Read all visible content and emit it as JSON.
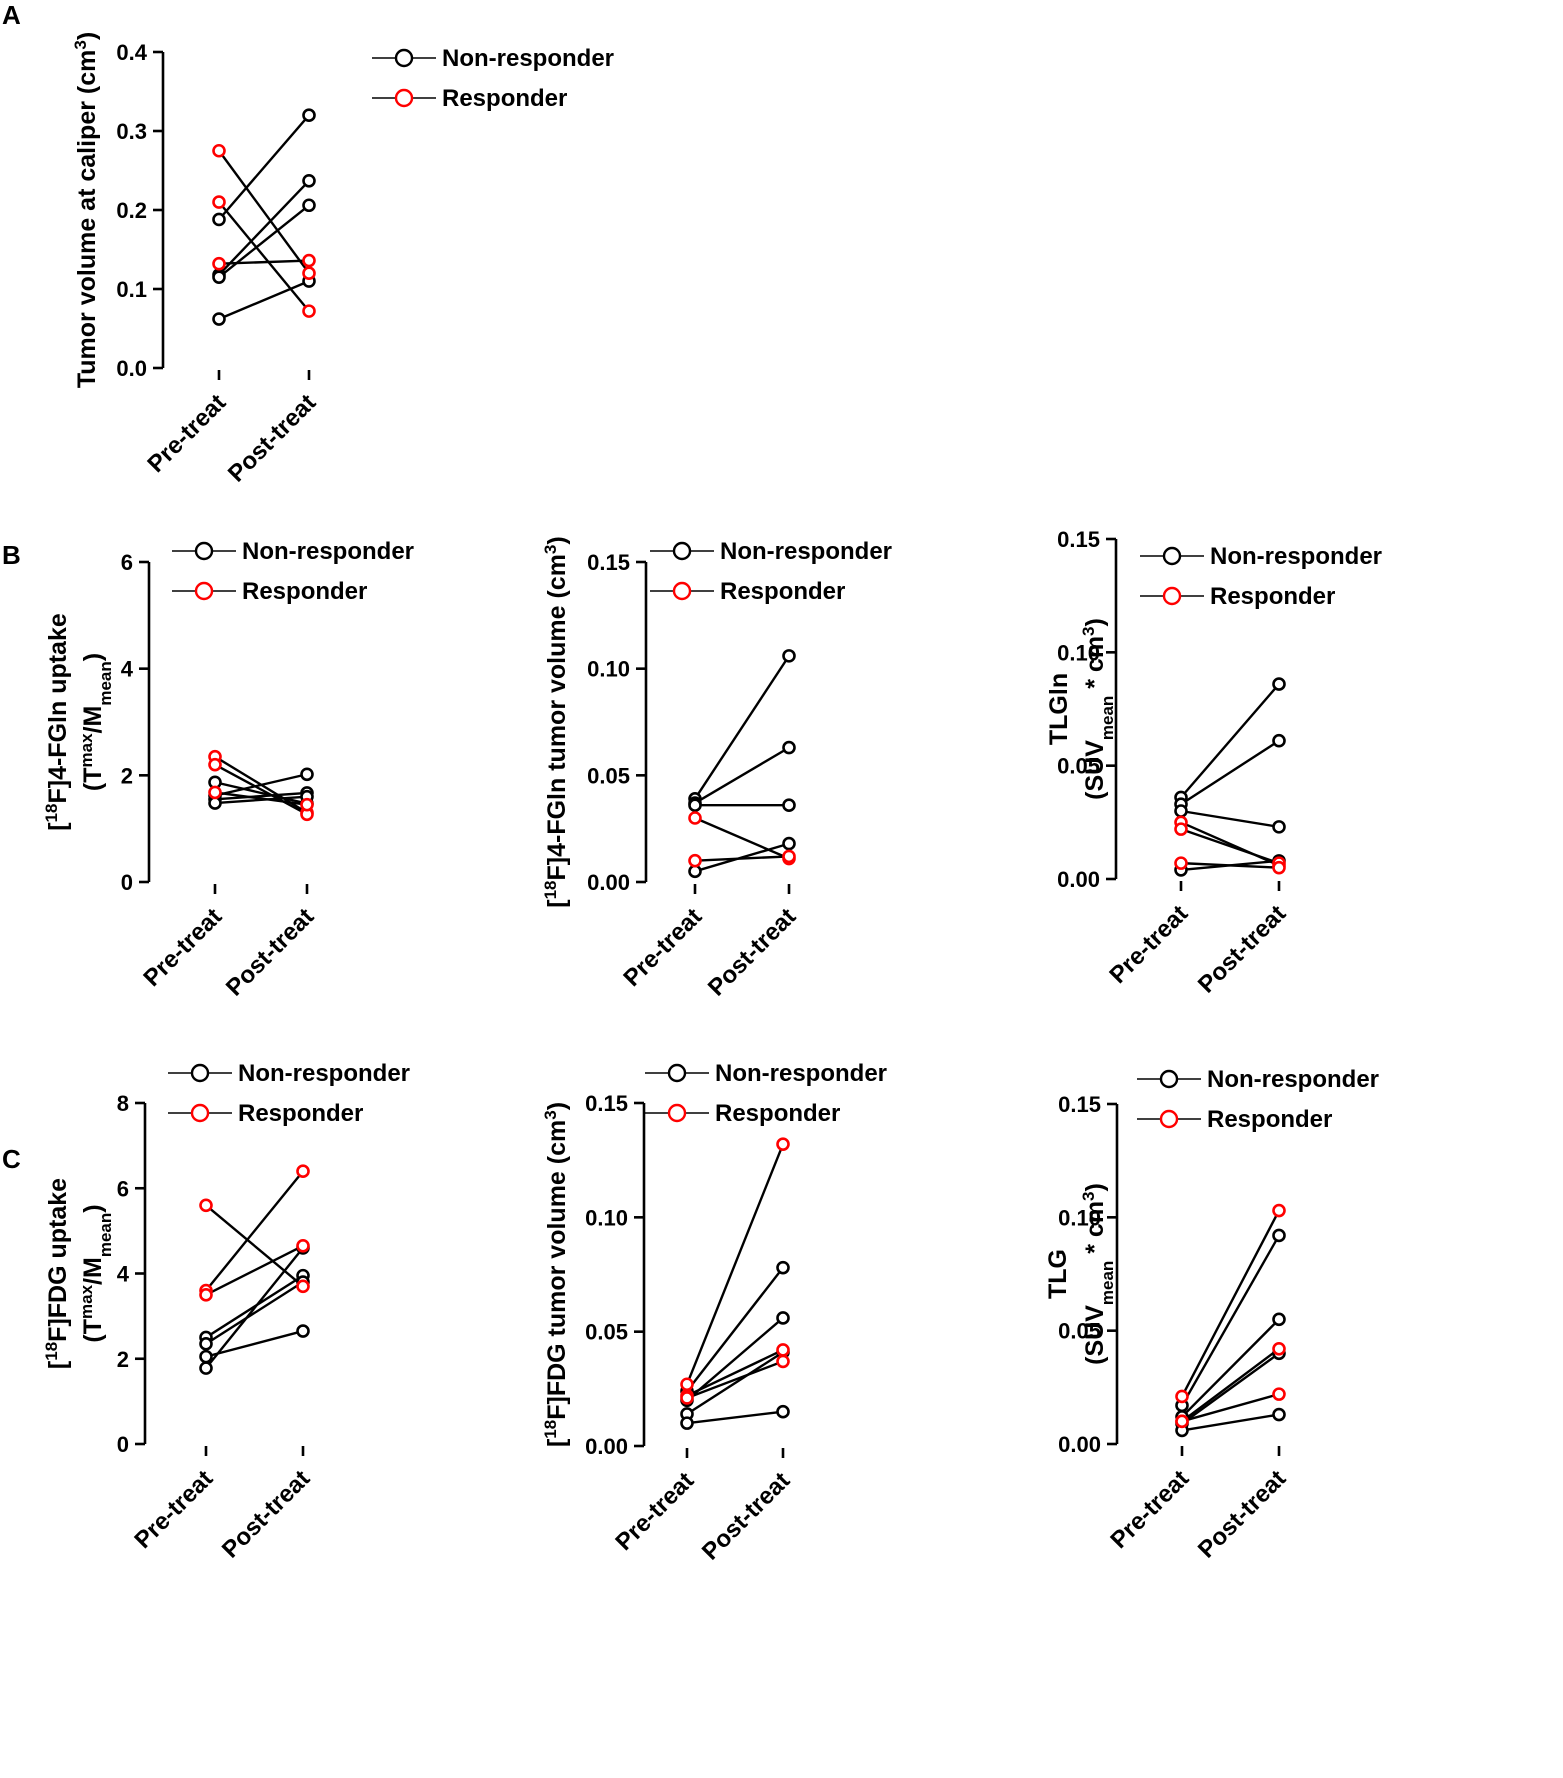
{
  "panel_labels": [
    "A",
    "B",
    "C"
  ],
  "legend": {
    "non_responder": {
      "label": "Non-responder",
      "color": "#000000"
    },
    "responder": {
      "label": "Responder",
      "color": "#ff0000"
    }
  },
  "chart_data": [
    {
      "id": "A",
      "type": "paired-line",
      "title": "",
      "ylabel_parts": [
        "Tumor volume at caliper (cm",
        "3",
        ")"
      ],
      "categories": [
        "Pre-treat",
        "Post-treat"
      ],
      "ylim": [
        0,
        0.4
      ],
      "yticks": [
        "0.0",
        "0.1",
        "0.2",
        "0.3",
        "0.4"
      ],
      "series": [
        {
          "group": "non_responder",
          "values": [
            0.188,
            0.32
          ]
        },
        {
          "group": "non_responder",
          "values": [
            0.118,
            0.237
          ]
        },
        {
          "group": "non_responder",
          "values": [
            0.115,
            0.206
          ]
        },
        {
          "group": "non_responder",
          "values": [
            0.062,
            0.11
          ]
        },
        {
          "group": "responder",
          "values": [
            0.275,
            0.12
          ]
        },
        {
          "group": "responder",
          "values": [
            0.21,
            0.072
          ]
        },
        {
          "group": "responder",
          "values": [
            0.132,
            0.136
          ]
        }
      ]
    },
    {
      "id": "B1",
      "type": "paired-line",
      "ylabel_line1_parts": [
        "[",
        "18",
        "F]4-FGln uptake"
      ],
      "ylabel_line2_parts": [
        "(T",
        "max",
        "/M",
        "mean",
        ")"
      ],
      "categories": [
        "Pre-treat",
        "Post-treat"
      ],
      "ylim": [
        0,
        6
      ],
      "yticks": [
        "0",
        "2",
        "4",
        "6"
      ],
      "series": [
        {
          "group": "non_responder",
          "values": [
            1.87,
            1.47
          ]
        },
        {
          "group": "non_responder",
          "values": [
            1.62,
            2.02
          ]
        },
        {
          "group": "non_responder",
          "values": [
            1.55,
            1.67
          ]
        },
        {
          "group": "non_responder",
          "values": [
            1.48,
            1.6
          ]
        },
        {
          "group": "responder",
          "values": [
            2.35,
            1.3
          ]
        },
        {
          "group": "responder",
          "values": [
            2.2,
            1.27
          ]
        },
        {
          "group": "responder",
          "values": [
            1.68,
            1.45
          ]
        }
      ]
    },
    {
      "id": "B2",
      "type": "paired-line",
      "ylabel_parts": [
        "[",
        "18",
        "F]4-FGln tumor volume (cm",
        "3",
        ")"
      ],
      "categories": [
        "Pre-treat",
        "Post-treat"
      ],
      "ylim": [
        0,
        0.15
      ],
      "yticks": [
        "0.00",
        "0.05",
        "0.10",
        "0.15"
      ],
      "series": [
        {
          "group": "non_responder",
          "values": [
            0.039,
            0.106
          ]
        },
        {
          "group": "non_responder",
          "values": [
            0.037,
            0.063
          ]
        },
        {
          "group": "non_responder",
          "values": [
            0.036,
            0.036
          ]
        },
        {
          "group": "non_responder",
          "values": [
            0.005,
            0.018
          ]
        },
        {
          "group": "responder",
          "values": [
            0.03,
            0.011
          ]
        },
        {
          "group": "responder",
          "values": [
            0.01,
            0.012
          ]
        }
      ]
    },
    {
      "id": "B3",
      "type": "paired-line",
      "ylabel_line1_parts": [
        "TLGln"
      ],
      "ylabel_line2_parts": [
        "(SUV",
        "mean",
        " * cm",
        "3",
        ")"
      ],
      "categories": [
        "Pre-treat",
        "Post-treat"
      ],
      "ylim": [
        0,
        0.15
      ],
      "yticks": [
        "0.00",
        "0.05",
        "0.10",
        "0.15"
      ],
      "series": [
        {
          "group": "non_responder",
          "values": [
            0.036,
            0.086
          ]
        },
        {
          "group": "non_responder",
          "values": [
            0.033,
            0.061
          ]
        },
        {
          "group": "non_responder",
          "values": [
            0.03,
            0.023
          ]
        },
        {
          "group": "non_responder",
          "values": [
            0.004,
            0.008
          ]
        },
        {
          "group": "responder",
          "values": [
            0.025,
            0.006
          ]
        },
        {
          "group": "responder",
          "values": [
            0.022,
            0.007
          ]
        },
        {
          "group": "responder",
          "values": [
            0.007,
            0.005
          ]
        }
      ]
    },
    {
      "id": "C1",
      "type": "paired-line",
      "ylabel_line1_parts": [
        "[",
        "18",
        "F]FDG uptake"
      ],
      "ylabel_line2_parts": [
        "(T",
        "max",
        "/M",
        "mean",
        ")"
      ],
      "categories": [
        "Pre-treat",
        "Post-treat"
      ],
      "ylim": [
        0,
        8
      ],
      "yticks": [
        "0",
        "2",
        "4",
        "6",
        "8"
      ],
      "series": [
        {
          "group": "non_responder",
          "values": [
            2.5,
            3.95
          ]
        },
        {
          "group": "non_responder",
          "values": [
            2.35,
            3.8
          ]
        },
        {
          "group": "non_responder",
          "values": [
            2.05,
            2.65
          ]
        },
        {
          "group": "non_responder",
          "values": [
            1.78,
            4.6
          ]
        },
        {
          "group": "responder",
          "values": [
            5.6,
            3.7
          ]
        },
        {
          "group": "responder",
          "values": [
            3.6,
            6.4
          ]
        },
        {
          "group": "responder",
          "values": [
            3.5,
            4.65
          ]
        }
      ]
    },
    {
      "id": "C2",
      "type": "paired-line",
      "ylabel_parts": [
        "[",
        "18",
        "F]FDG tumor volume (cm",
        "3",
        ")"
      ],
      "categories": [
        "Pre-treat",
        "Post-treat"
      ],
      "ylim": [
        0,
        0.15
      ],
      "yticks": [
        "0.00",
        "0.05",
        "0.10",
        "0.15"
      ],
      "series": [
        {
          "group": "non_responder",
          "values": [
            0.024,
            0.078
          ]
        },
        {
          "group": "non_responder",
          "values": [
            0.02,
            0.056
          ]
        },
        {
          "group": "non_responder",
          "values": [
            0.014,
            0.041
          ]
        },
        {
          "group": "non_responder",
          "values": [
            0.01,
            0.015
          ]
        },
        {
          "group": "responder",
          "values": [
            0.027,
            0.132
          ]
        },
        {
          "group": "responder",
          "values": [
            0.022,
            0.042
          ]
        },
        {
          "group": "responder",
          "values": [
            0.021,
            0.037
          ]
        }
      ]
    },
    {
      "id": "C3",
      "type": "paired-line",
      "ylabel_line1_parts": [
        "TLG"
      ],
      "ylabel_line2_parts": [
        "(SUV",
        "mean",
        " * cm",
        "3",
        ")"
      ],
      "categories": [
        "Pre-treat",
        "Post-treat"
      ],
      "ylim": [
        0,
        0.15
      ],
      "yticks": [
        "0.00",
        "0.05",
        "0.10",
        "0.15"
      ],
      "series": [
        {
          "group": "non_responder",
          "values": [
            0.017,
            0.092
          ]
        },
        {
          "group": "non_responder",
          "values": [
            0.012,
            0.055
          ]
        },
        {
          "group": "non_responder",
          "values": [
            0.009,
            0.04
          ]
        },
        {
          "group": "non_responder",
          "values": [
            0.006,
            0.013
          ]
        },
        {
          "group": "responder",
          "values": [
            0.021,
            0.103
          ]
        },
        {
          "group": "responder",
          "values": [
            0.01,
            0.042
          ]
        },
        {
          "group": "responder",
          "values": [
            0.01,
            0.022
          ]
        }
      ]
    }
  ]
}
